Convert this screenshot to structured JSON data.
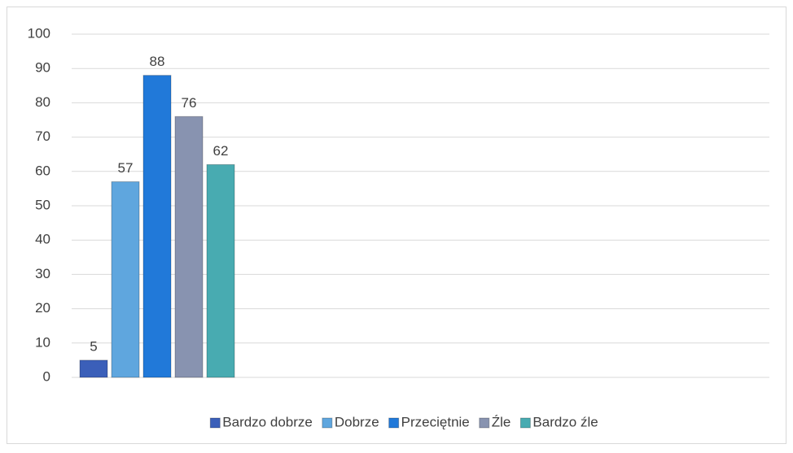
{
  "chart_data": {
    "type": "bar",
    "categories": [
      null
    ],
    "series": [
      {
        "name": "Bardzo dobrze",
        "color": "#3b5fb9",
        "values": [
          5
        ]
      },
      {
        "name": "Dobrze",
        "color": "#5fa6de",
        "values": [
          57
        ]
      },
      {
        "name": "Przeciętnie",
        "color": "#2179d9",
        "values": [
          88
        ]
      },
      {
        "name": "Źle",
        "color": "#8893b0",
        "values": [
          76
        ]
      },
      {
        "name": "Bardzo źle",
        "color": "#48abb1",
        "values": [
          62
        ]
      }
    ],
    "ylim": [
      0,
      100
    ],
    "yticks": [
      0,
      10,
      20,
      30,
      40,
      50,
      60,
      70,
      80,
      90,
      100
    ],
    "grid": true,
    "legend": "bottom",
    "data_labels": true
  }
}
